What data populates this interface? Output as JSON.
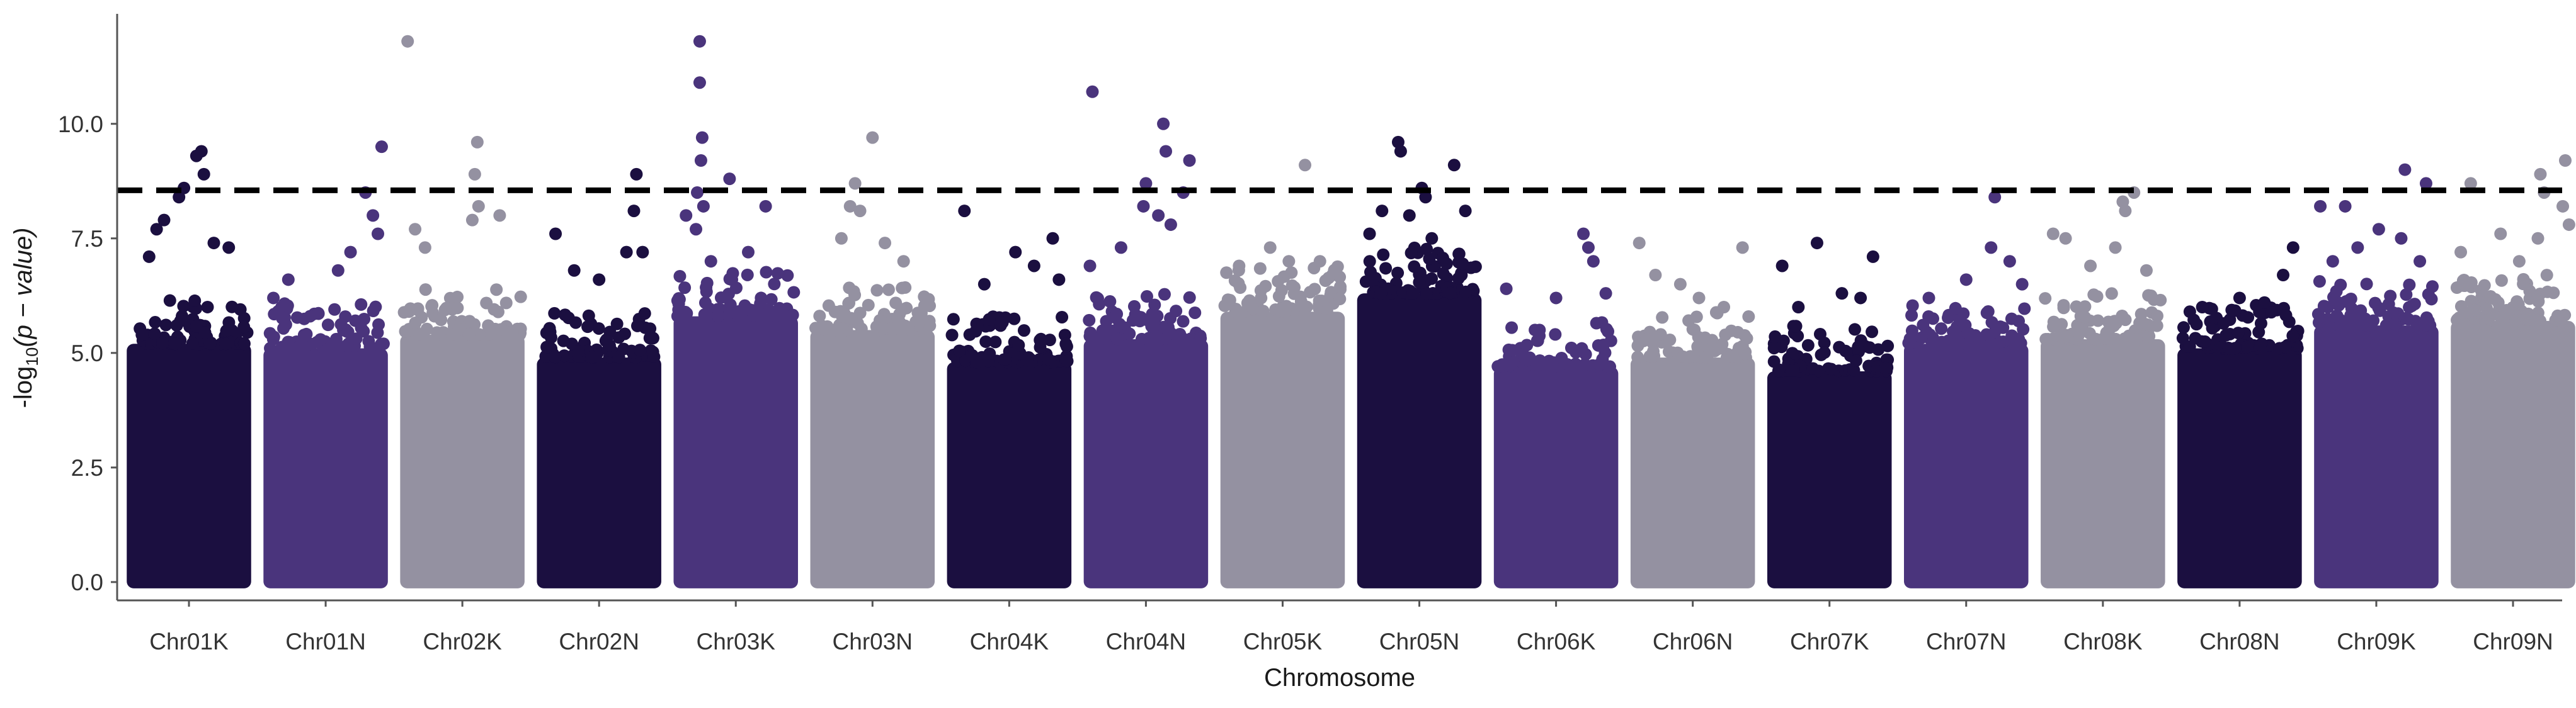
{
  "chart_data": {
    "type": "scatter",
    "subtype": "manhattan",
    "title": "",
    "xlabel": "Chromosome",
    "ylabel_prefix": "-log",
    "ylabel_sub": "10",
    "ylabel_suffix": "(p − value)",
    "ylim": [
      -0.4,
      12.4
    ],
    "yticks": [
      0.0,
      2.5,
      5.0,
      7.5,
      10.0
    ],
    "ytick_labels": [
      "0.0",
      "2.5",
      "5.0",
      "7.5",
      "10.0"
    ],
    "threshold": 8.55,
    "threshold_style": "dashed",
    "grid": false,
    "legend": "none",
    "palette": [
      "#1b0f40",
      "#4a347c",
      "#9491a1"
    ],
    "chromosomes": [
      {
        "name": "Chr01K",
        "color": "#1b0f40",
        "base_max": 5.2,
        "peaks": [
          [
            0.6,
            9.4
          ],
          [
            0.56,
            9.3
          ],
          [
            0.62,
            8.9
          ],
          [
            0.46,
            8.6
          ],
          [
            0.42,
            8.4
          ],
          [
            0.3,
            7.9
          ],
          [
            0.24,
            7.7
          ],
          [
            0.7,
            7.4
          ],
          [
            0.18,
            7.1
          ],
          [
            0.82,
            7.3
          ]
        ]
      },
      {
        "name": "Chr01N",
        "color": "#4a347c",
        "base_max": 5.1,
        "peaks": [
          [
            0.95,
            9.5
          ],
          [
            0.82,
            8.5
          ],
          [
            0.88,
            8.0
          ],
          [
            0.92,
            7.6
          ],
          [
            0.7,
            7.2
          ],
          [
            0.6,
            6.8
          ],
          [
            0.2,
            6.6
          ],
          [
            0.08,
            6.2
          ]
        ]
      },
      {
        "name": "Chr02K",
        "color": "#9491a1",
        "base_max": 5.4,
        "peaks": [
          [
            0.06,
            11.8
          ],
          [
            0.62,
            9.6
          ],
          [
            0.6,
            8.9
          ],
          [
            0.63,
            8.2
          ],
          [
            0.12,
            7.7
          ],
          [
            0.58,
            7.9
          ],
          [
            0.8,
            8.0
          ],
          [
            0.2,
            7.3
          ]
        ]
      },
      {
        "name": "Chr02N",
        "color": "#1b0f40",
        "base_max": 4.9,
        "peaks": [
          [
            0.8,
            8.9
          ],
          [
            0.78,
            8.1
          ],
          [
            0.15,
            7.6
          ],
          [
            0.72,
            7.2
          ],
          [
            0.3,
            6.8
          ],
          [
            0.5,
            6.6
          ],
          [
            0.85,
            7.2
          ]
        ]
      },
      {
        "name": "Chr03K",
        "color": "#4a347c",
        "base_max": 5.8,
        "peaks": [
          [
            0.21,
            11.8
          ],
          [
            0.21,
            10.9
          ],
          [
            0.23,
            9.7
          ],
          [
            0.22,
            9.2
          ],
          [
            0.45,
            8.8
          ],
          [
            0.19,
            8.5
          ],
          [
            0.24,
            8.2
          ],
          [
            0.18,
            7.7
          ],
          [
            0.74,
            8.2
          ],
          [
            0.6,
            7.2
          ],
          [
            0.1,
            8.0
          ],
          [
            0.3,
            7.0
          ]
        ]
      },
      {
        "name": "Chr03N",
        "color": "#9491a1",
        "base_max": 5.5,
        "peaks": [
          [
            0.5,
            9.7
          ],
          [
            0.36,
            8.7
          ],
          [
            0.32,
            8.2
          ],
          [
            0.4,
            8.1
          ],
          [
            0.25,
            7.5
          ],
          [
            0.6,
            7.4
          ],
          [
            0.75,
            7.0
          ]
        ]
      },
      {
        "name": "Chr04K",
        "color": "#1b0f40",
        "base_max": 4.8,
        "peaks": [
          [
            0.14,
            8.1
          ],
          [
            0.85,
            7.5
          ],
          [
            0.55,
            7.2
          ],
          [
            0.7,
            6.9
          ],
          [
            0.3,
            6.5
          ],
          [
            0.9,
            6.6
          ]
        ]
      },
      {
        "name": "Chr04N",
        "color": "#4a347c",
        "base_max": 5.3,
        "peaks": [
          [
            0.07,
            10.7
          ],
          [
            0.64,
            10.0
          ],
          [
            0.66,
            9.4
          ],
          [
            0.85,
            9.2
          ],
          [
            0.5,
            8.7
          ],
          [
            0.8,
            8.5
          ],
          [
            0.48,
            8.2
          ],
          [
            0.6,
            8.0
          ],
          [
            0.7,
            7.8
          ],
          [
            0.3,
            7.3
          ],
          [
            0.05,
            6.9
          ]
        ]
      },
      {
        "name": "Chr05K",
        "color": "#9491a1",
        "base_max": 5.9,
        "peaks": [
          [
            0.68,
            9.1
          ],
          [
            0.4,
            7.3
          ],
          [
            0.55,
            7.0
          ],
          [
            0.8,
            7.0
          ],
          [
            0.15,
            6.9
          ],
          [
            0.9,
            6.7
          ]
        ]
      },
      {
        "name": "Chr05N",
        "color": "#1b0f40",
        "base_max": 6.3,
        "peaks": [
          [
            0.33,
            9.6
          ],
          [
            0.35,
            9.4
          ],
          [
            0.52,
            8.6
          ],
          [
            0.78,
            9.1
          ],
          [
            0.55,
            8.4
          ],
          [
            0.87,
            8.1
          ],
          [
            0.2,
            8.1
          ],
          [
            0.42,
            8.0
          ],
          [
            0.1,
            7.6
          ],
          [
            0.6,
            7.5
          ]
        ]
      },
      {
        "name": "Chr06K",
        "color": "#4a347c",
        "base_max": 4.7,
        "peaks": [
          [
            0.72,
            7.6
          ],
          [
            0.76,
            7.3
          ],
          [
            0.8,
            7.0
          ],
          [
            0.1,
            6.4
          ],
          [
            0.5,
            6.2
          ],
          [
            0.9,
            6.3
          ]
        ]
      },
      {
        "name": "Chr06N",
        "color": "#9491a1",
        "base_max": 4.9,
        "peaks": [
          [
            0.07,
            7.4
          ],
          [
            0.9,
            7.3
          ],
          [
            0.2,
            6.7
          ],
          [
            0.4,
            6.5
          ],
          [
            0.55,
            6.2
          ],
          [
            0.75,
            6.0
          ]
        ]
      },
      {
        "name": "Chr07K",
        "color": "#1b0f40",
        "base_max": 4.6,
        "peaks": [
          [
            0.12,
            6.9
          ],
          [
            0.4,
            7.4
          ],
          [
            0.85,
            7.1
          ],
          [
            0.6,
            6.3
          ],
          [
            0.25,
            6.0
          ],
          [
            0.75,
            6.2
          ]
        ]
      },
      {
        "name": "Chr07N",
        "color": "#4a347c",
        "base_max": 5.2,
        "peaks": [
          [
            0.73,
            8.4
          ],
          [
            0.7,
            7.3
          ],
          [
            0.85,
            7.0
          ],
          [
            0.5,
            6.6
          ],
          [
            0.2,
            6.2
          ],
          [
            0.95,
            6.5
          ]
        ]
      },
      {
        "name": "Chr08K",
        "color": "#9491a1",
        "base_max": 5.3,
        "peaks": [
          [
            0.75,
            8.5
          ],
          [
            0.66,
            8.3
          ],
          [
            0.68,
            8.1
          ],
          [
            0.1,
            7.6
          ],
          [
            0.2,
            7.5
          ],
          [
            0.6,
            7.3
          ],
          [
            0.4,
            6.9
          ],
          [
            0.85,
            6.8
          ]
        ]
      },
      {
        "name": "Chr08N",
        "color": "#1b0f40",
        "base_max": 5.1,
        "peaks": [
          [
            0.93,
            7.3
          ],
          [
            0.85,
            6.7
          ],
          [
            0.5,
            6.2
          ],
          [
            0.2,
            6.0
          ],
          [
            0.7,
            6.1
          ],
          [
            0.1,
            5.9
          ]
        ]
      },
      {
        "name": "Chr09K",
        "color": "#4a347c",
        "base_max": 5.6,
        "peaks": [
          [
            0.73,
            9.0
          ],
          [
            0.9,
            8.7
          ],
          [
            0.05,
            8.2
          ],
          [
            0.25,
            8.2
          ],
          [
            0.52,
            7.7
          ],
          [
            0.7,
            7.5
          ],
          [
            0.35,
            7.3
          ],
          [
            0.85,
            7.0
          ],
          [
            0.15,
            7.0
          ]
        ]
      },
      {
        "name": "Chr09N",
        "color": "#9491a1",
        "base_max": 5.7,
        "peaks": [
          [
            0.92,
            9.2
          ],
          [
            0.72,
            8.9
          ],
          [
            0.16,
            8.7
          ],
          [
            0.75,
            8.5
          ],
          [
            0.9,
            8.2
          ],
          [
            0.95,
            7.8
          ],
          [
            0.4,
            7.6
          ],
          [
            0.7,
            7.5
          ],
          [
            0.08,
            7.2
          ],
          [
            0.55,
            7.0
          ]
        ]
      }
    ]
  }
}
